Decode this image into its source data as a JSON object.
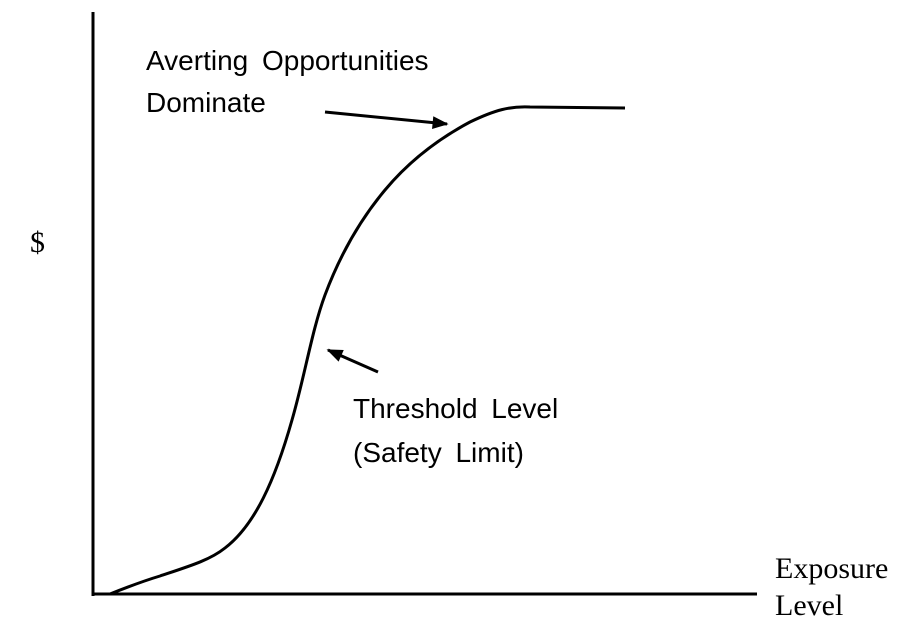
{
  "axes": {
    "y_label": "$",
    "x_label_lines": [
      "Exposure",
      "Level"
    ]
  },
  "annotations": [
    {
      "lines": [
        "Averting Opportunities",
        "Dominate"
      ]
    },
    {
      "lines": [
        "Threshold Level",
        "(Safety Limit)"
      ]
    }
  ]
}
